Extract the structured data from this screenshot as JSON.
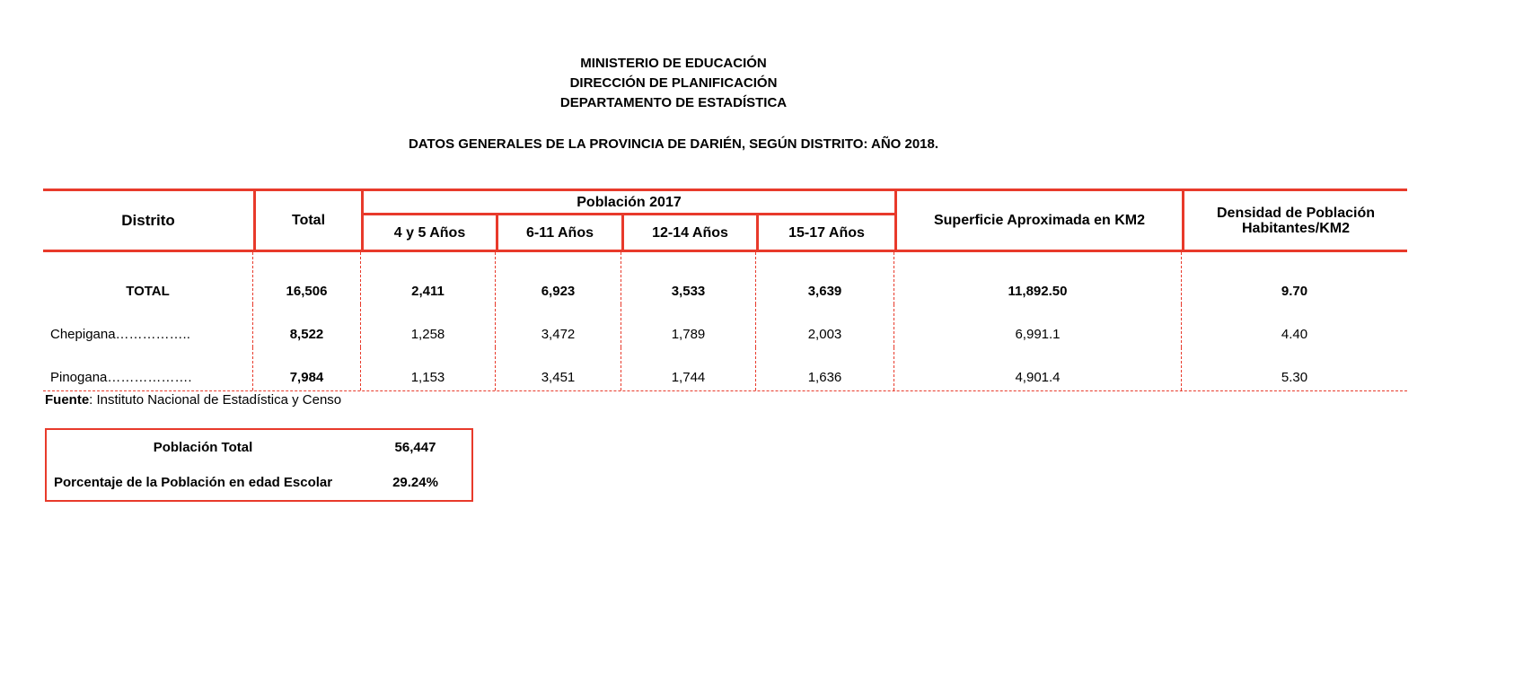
{
  "colors": {
    "border_red": "#e83a2b",
    "text": "#000000",
    "background": "#ffffff"
  },
  "letterhead": [
    "MINISTERIO DE EDUCACIÓN",
    "DIRECCIÓN DE PLANIFICACIÓN",
    "DEPARTAMENTO DE ESTADÍSTICA"
  ],
  "title": "DATOS GENERALES DE LA PROVINCIA DE DARIÉN, SEGÚN DISTRITO: AÑO 2018.",
  "table": {
    "headers": {
      "distrito": "Distrito",
      "total": "Total",
      "poblacion_group": "Población 2017",
      "age_groups": [
        "4 y 5 Años",
        "6-11 Años",
        "12-14 Años",
        "15-17 Años"
      ],
      "superficie": "Superficie Aproximada en KM2",
      "densidad_line1": "Densidad de Población",
      "densidad_line2": "Habitantes/KM2"
    },
    "rows": [
      {
        "distrito": "TOTAL",
        "total": "16,506",
        "age_4_5": "2,411",
        "age_6_11": "6,923",
        "age_12_14": "3,533",
        "age_15_17": "3,639",
        "superficie": "11,892.50",
        "densidad": "9.70"
      },
      {
        "distrito": "Chepigana……………..",
        "total": "8,522",
        "age_4_5": "1,258",
        "age_6_11": "3,472",
        "age_12_14": "1,789",
        "age_15_17": "2,003",
        "superficie": "6,991.1",
        "densidad": "4.40"
      },
      {
        "distrito": "Pinogana……………….",
        "total": "7,984",
        "age_4_5": "1,153",
        "age_6_11": "3,451",
        "age_12_14": "1,744",
        "age_15_17": "1,636",
        "superficie": "4,901.4",
        "densidad": "5.30"
      }
    ]
  },
  "source": {
    "label": "Fuente",
    "rest": ": Instituto Nacional de Estadística y Censo"
  },
  "summary_box": {
    "rows": [
      {
        "label": "Población Total",
        "value": "56,447"
      },
      {
        "label": "Porcentaje de la Población en edad Escolar",
        "value": "29.24%"
      }
    ]
  }
}
